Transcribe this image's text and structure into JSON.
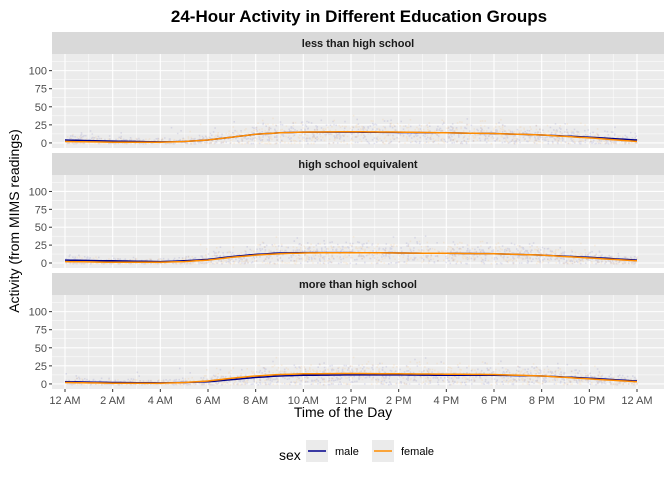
{
  "chart_data": {
    "type": "scatter",
    "title": "24-Hour Activity in Different Education Groups",
    "xlabel": "Time of the Day",
    "ylabel": "Activity (from MIMS readings)",
    "x_ticks": [
      {
        "hour": 0,
        "label": "12 AM"
      },
      {
        "hour": 2,
        "label": "2 AM"
      },
      {
        "hour": 4,
        "label": "4 AM"
      },
      {
        "hour": 6,
        "label": "6 AM"
      },
      {
        "hour": 8,
        "label": "8 AM"
      },
      {
        "hour": 10,
        "label": "10 AM"
      },
      {
        "hour": 12,
        "label": "12 PM"
      },
      {
        "hour": 14,
        "label": "2 PM"
      },
      {
        "hour": 16,
        "label": "4 PM"
      },
      {
        "hour": 18,
        "label": "6 PM"
      },
      {
        "hour": 20,
        "label": "8 PM"
      },
      {
        "hour": 22,
        "label": "10 PM"
      },
      {
        "hour": 24,
        "label": "12 AM"
      }
    ],
    "xlim": [
      0,
      24
    ],
    "y_ticks": [
      0,
      25,
      50,
      75,
      100
    ],
    "ylim": [
      -7,
      123
    ],
    "grid": true,
    "legend": {
      "title": "sex",
      "placement": "bottom",
      "entries": [
        {
          "label": "male",
          "color": "#00008B"
        },
        {
          "label": "female",
          "color": "#FF8C00"
        }
      ]
    },
    "panels": [
      {
        "strip": "less than high school",
        "smooth": [
          {
            "series": "male",
            "color": "#00008B",
            "points": [
              [
                0,
                4
              ],
              [
                2,
                2.5
              ],
              [
                4,
                1.5
              ],
              [
                5,
                2
              ],
              [
                6,
                4
              ],
              [
                7,
                8
              ],
              [
                8,
                12
              ],
              [
                9,
                14
              ],
              [
                10,
                15
              ],
              [
                12,
                15
              ],
              [
                14,
                14.5
              ],
              [
                16,
                14
              ],
              [
                18,
                13
              ],
              [
                20,
                11
              ],
              [
                22,
                8
              ],
              [
                24,
                4
              ]
            ]
          },
          {
            "series": "female",
            "color": "#FF8C00",
            "points": [
              [
                0,
                2
              ],
              [
                2,
                1
              ],
              [
                4,
                1
              ],
              [
                5,
                2
              ],
              [
                6,
                4
              ],
              [
                7,
                8
              ],
              [
                8,
                12
              ],
              [
                9,
                14
              ],
              [
                10,
                15
              ],
              [
                12,
                15.5
              ],
              [
                14,
                15
              ],
              [
                16,
                14
              ],
              [
                18,
                13
              ],
              [
                20,
                11
              ],
              [
                22,
                7
              ],
              [
                24,
                2
              ]
            ]
          }
        ]
      },
      {
        "strip": "high school equivalent",
        "smooth": [
          {
            "series": "male",
            "color": "#00008B",
            "points": [
              [
                0,
                4
              ],
              [
                2,
                3
              ],
              [
                4,
                2
              ],
              [
                5,
                3
              ],
              [
                6,
                5
              ],
              [
                7,
                9
              ],
              [
                8,
                12
              ],
              [
                9,
                14
              ],
              [
                10,
                14.5
              ],
              [
                12,
                14.5
              ],
              [
                14,
                14
              ],
              [
                16,
                13.5
              ],
              [
                18,
                13
              ],
              [
                20,
                11
              ],
              [
                22,
                8
              ],
              [
                24,
                4
              ]
            ]
          },
          {
            "series": "female",
            "color": "#FF8C00",
            "points": [
              [
                0,
                2
              ],
              [
                2,
                1
              ],
              [
                4,
                1
              ],
              [
                5,
                2
              ],
              [
                6,
                4
              ],
              [
                7,
                8
              ],
              [
                8,
                11
              ],
              [
                9,
                13
              ],
              [
                10,
                14
              ],
              [
                12,
                14.5
              ],
              [
                14,
                14
              ],
              [
                16,
                13.5
              ],
              [
                18,
                13
              ],
              [
                20,
                11
              ],
              [
                22,
                7
              ],
              [
                24,
                3
              ]
            ]
          }
        ]
      },
      {
        "strip": "more than high school",
        "smooth": [
          {
            "series": "male",
            "color": "#00008B",
            "points": [
              [
                0,
                3
              ],
              [
                2,
                2
              ],
              [
                4,
                1.5
              ],
              [
                5,
                2
              ],
              [
                6,
                3
              ],
              [
                7,
                6
              ],
              [
                8,
                9
              ],
              [
                9,
                11
              ],
              [
                10,
                12
              ],
              [
                12,
                12.5
              ],
              [
                14,
                12.5
              ],
              [
                16,
                12
              ],
              [
                18,
                12
              ],
              [
                20,
                11
              ],
              [
                22,
                8
              ],
              [
                24,
                4
              ]
            ]
          },
          {
            "series": "female",
            "color": "#FF8C00",
            "points": [
              [
                0,
                2
              ],
              [
                2,
                1
              ],
              [
                4,
                1
              ],
              [
                5,
                2
              ],
              [
                6,
                4
              ],
              [
                7,
                8
              ],
              [
                8,
                11
              ],
              [
                9,
                13
              ],
              [
                10,
                14
              ],
              [
                12,
                14.5
              ],
              [
                14,
                14
              ],
              [
                16,
                13.5
              ],
              [
                18,
                13
              ],
              [
                20,
                11
              ],
              [
                22,
                7
              ],
              [
                24,
                3
              ]
            ]
          }
        ]
      }
    ]
  }
}
